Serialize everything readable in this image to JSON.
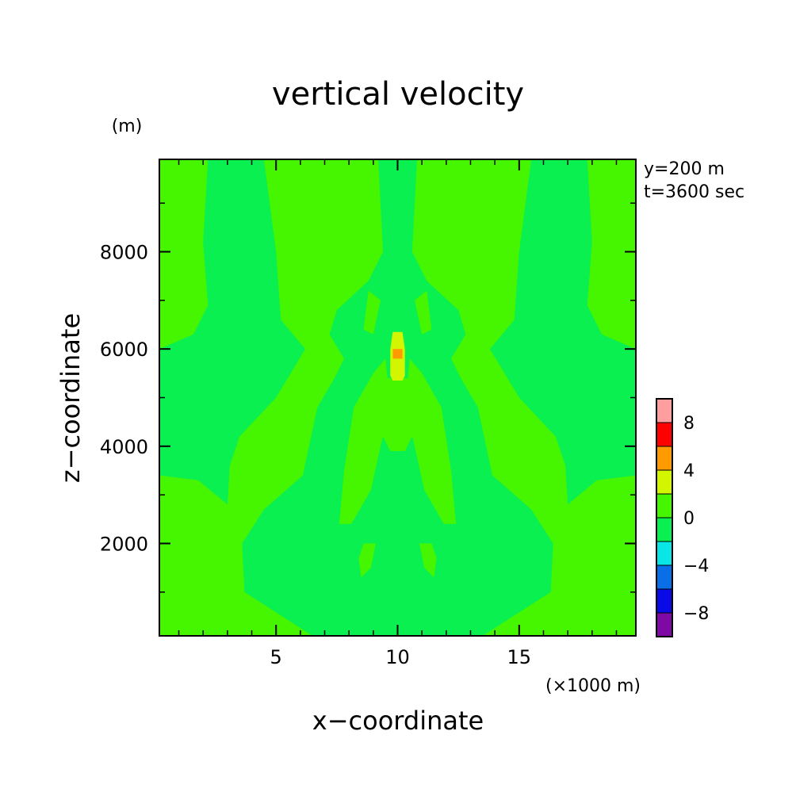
{
  "chart_data": {
    "type": "heatmap",
    "title": "vertical velocity",
    "xlabel": "x−coordinate",
    "ylabel": "z−coordinate",
    "x_unit_label": "(×1000 m)",
    "y_unit_label": "(m)",
    "annotations": [
      "y=200 m",
      "t=3600 sec"
    ],
    "xlim": [
      0.2,
      19.8
    ],
    "ylim": [
      100,
      9900
    ],
    "x_ticks": [
      5,
      10,
      15
    ],
    "y_ticks": [
      2000,
      4000,
      6000,
      8000
    ],
    "y_tick_labels": [
      "2000",
      "4000",
      "6000",
      "8000"
    ],
    "x_tick_labels": [
      "5",
      "10",
      "15"
    ],
    "colorbar": {
      "levels": [
        -10,
        -8,
        -6,
        -4,
        -2,
        0,
        2,
        4,
        6,
        8,
        10
      ],
      "tick_labels": [
        "−8",
        "−4",
        "0",
        "4",
        "8"
      ],
      "tick_values": [
        -8,
        -4,
        0,
        4,
        8
      ],
      "colors": [
        "#7f0aa3",
        "#0a0ae6",
        "#0a6ee6",
        "#0ae6e6",
        "#0af050",
        "#46f500",
        "#d4f500",
        "#ff9a00",
        "#ff0000",
        "#ff9e9e"
      ]
    },
    "background_level_color": "#46f500",
    "regions": [
      {
        "name": "outer-left-band",
        "level": "0 to -2",
        "color": "#0af050",
        "polygon": [
          [
            2.2,
            9900
          ],
          [
            4.5,
            9900
          ],
          [
            5.0,
            8000
          ],
          [
            5.2,
            6600
          ],
          [
            6.2,
            6000
          ],
          [
            5.0,
            5000
          ],
          [
            3.5,
            4200
          ],
          [
            3.1,
            3600
          ],
          [
            3.0,
            2800
          ],
          [
            1.8,
            3300
          ],
          [
            0.2,
            3400
          ],
          [
            0.2,
            6000
          ],
          [
            1.6,
            6300
          ],
          [
            2.2,
            6900
          ],
          [
            2.0,
            8200
          ]
        ]
      },
      {
        "name": "outer-right-band",
        "level": "0 to -2",
        "color": "#0af050",
        "polygon": [
          [
            17.8,
            9900
          ],
          [
            15.5,
            9900
          ],
          [
            15.0,
            8000
          ],
          [
            14.8,
            6600
          ],
          [
            13.8,
            6000
          ],
          [
            15.0,
            5000
          ],
          [
            16.5,
            4200
          ],
          [
            16.9,
            3600
          ],
          [
            17.0,
            2800
          ],
          [
            18.2,
            3300
          ],
          [
            19.8,
            3400
          ],
          [
            19.8,
            6000
          ],
          [
            18.4,
            6300
          ],
          [
            17.8,
            6900
          ],
          [
            18.0,
            8200
          ]
        ]
      },
      {
        "name": "central-body",
        "level": "0 to -2",
        "color": "#0af050",
        "polygon": [
          [
            9.2,
            9900
          ],
          [
            10.8,
            9900
          ],
          [
            10.6,
            8000
          ],
          [
            11.2,
            7400
          ],
          [
            12.5,
            6800
          ],
          [
            12.8,
            6300
          ],
          [
            12.2,
            5800
          ],
          [
            12.6,
            5400
          ],
          [
            13.3,
            4800
          ],
          [
            13.9,
            3400
          ],
          [
            15.5,
            2700
          ],
          [
            16.4,
            2000
          ],
          [
            16.3,
            1000
          ],
          [
            13.5,
            100
          ],
          [
            6.5,
            100
          ],
          [
            3.7,
            1000
          ],
          [
            3.6,
            2000
          ],
          [
            4.5,
            2700
          ],
          [
            6.1,
            3400
          ],
          [
            6.7,
            4800
          ],
          [
            7.4,
            5400
          ],
          [
            7.8,
            5800
          ],
          [
            7.2,
            6300
          ],
          [
            7.5,
            6800
          ],
          [
            8.8,
            7400
          ],
          [
            9.4,
            8000
          ]
        ]
      },
      {
        "name": "inner-core-left",
        "level": "0 to 2",
        "color": "#46f500",
        "polygon": [
          [
            9.5,
            5800
          ],
          [
            9.7,
            4800
          ],
          [
            9.3,
            4000
          ],
          [
            8.9,
            3100
          ],
          [
            8.1,
            2400
          ],
          [
            7.6,
            2400
          ],
          [
            7.8,
            3500
          ],
          [
            8.2,
            4800
          ],
          [
            9.0,
            5500
          ]
        ]
      },
      {
        "name": "inner-core-right",
        "level": "0 to 2",
        "color": "#46f500",
        "polygon": [
          [
            10.5,
            5800
          ],
          [
            10.3,
            4800
          ],
          [
            10.7,
            4000
          ],
          [
            11.1,
            3100
          ],
          [
            11.9,
            2400
          ],
          [
            12.4,
            2400
          ],
          [
            12.2,
            3500
          ],
          [
            11.8,
            4800
          ],
          [
            11.0,
            5500
          ]
        ]
      },
      {
        "name": "inner-core-top",
        "level": "0 to 2",
        "color": "#46f500",
        "polygon": [
          [
            9.2,
            5400
          ],
          [
            10.8,
            5400
          ],
          [
            11.0,
            4800
          ],
          [
            10.6,
            4200
          ],
          [
            10.3,
            3900
          ],
          [
            9.7,
            3900
          ],
          [
            9.4,
            4200
          ],
          [
            9.0,
            4800
          ]
        ]
      },
      {
        "name": "upper-lobe-left",
        "level": "0 to 2",
        "color": "#46f500",
        "polygon": [
          [
            8.8,
            7200
          ],
          [
            9.3,
            7000
          ],
          [
            9.0,
            6300
          ],
          [
            8.6,
            6400
          ]
        ]
      },
      {
        "name": "upper-lobe-right",
        "level": "0 to 2",
        "color": "#46f500",
        "polygon": [
          [
            11.2,
            7200
          ],
          [
            10.7,
            7000
          ],
          [
            11.0,
            6300
          ],
          [
            11.4,
            6400
          ]
        ]
      },
      {
        "name": "lower-lobe-left",
        "level": "0 to 2",
        "color": "#46f500",
        "polygon": [
          [
            8.6,
            2000
          ],
          [
            9.1,
            2000
          ],
          [
            8.9,
            1500
          ],
          [
            8.5,
            1300
          ],
          [
            8.4,
            1700
          ]
        ]
      },
      {
        "name": "lower-lobe-right",
        "level": "0 to 2",
        "color": "#46f500",
        "polygon": [
          [
            11.4,
            2000
          ],
          [
            10.9,
            2000
          ],
          [
            11.1,
            1500
          ],
          [
            11.5,
            1300
          ],
          [
            11.6,
            1700
          ]
        ]
      },
      {
        "name": "core-yellow",
        "level": "2 to 4",
        "color": "#d4f500",
        "polygon": [
          [
            9.8,
            6350
          ],
          [
            10.2,
            6350
          ],
          [
            10.3,
            6000
          ],
          [
            10.3,
            5450
          ],
          [
            10.2,
            5350
          ],
          [
            9.8,
            5350
          ],
          [
            9.7,
            5450
          ],
          [
            9.7,
            6000
          ]
        ]
      },
      {
        "name": "core-orange",
        "level": "4 to 6",
        "color": "#ff9a00",
        "polygon": [
          [
            9.8,
            6000
          ],
          [
            10.2,
            6000
          ],
          [
            10.2,
            5800
          ],
          [
            9.8,
            5800
          ]
        ]
      }
    ]
  }
}
